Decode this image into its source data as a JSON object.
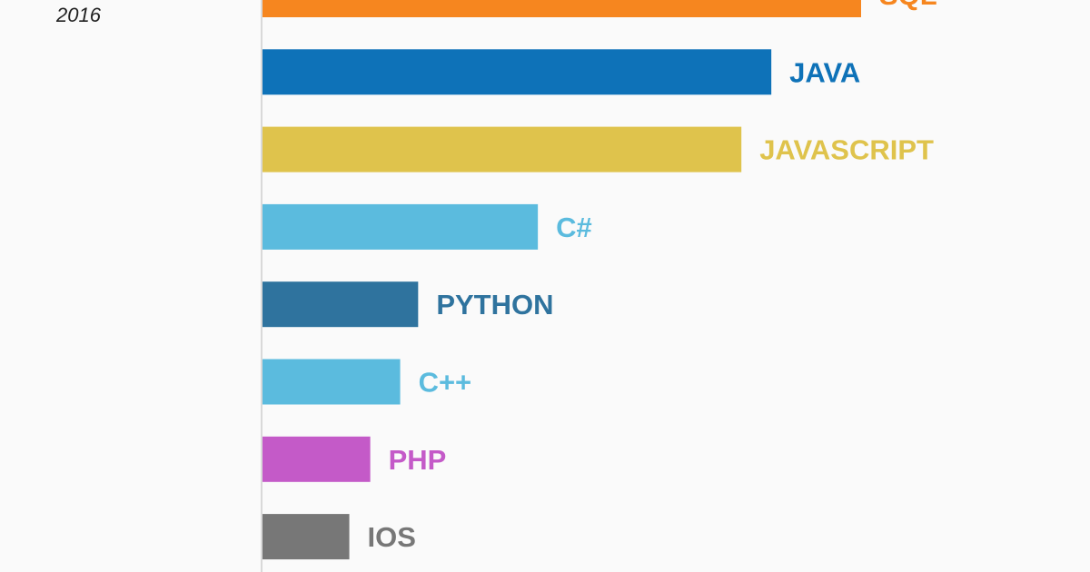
{
  "header": {
    "year": "2016"
  },
  "chart_data": {
    "type": "bar",
    "orientation": "horizontal",
    "categories": [
      "SQL",
      "JAVA",
      "JAVASCRIPT",
      "C#",
      "PYTHON",
      "C++",
      "PHP",
      "IOS"
    ],
    "values": [
      100,
      85,
      80,
      46,
      26,
      23,
      18,
      14.5
    ],
    "colors": [
      "#f6861f",
      "#0e72b8",
      "#dfc34c",
      "#5bbbde",
      "#2f739e",
      "#5bbbde",
      "#c45ac8",
      "#777777"
    ],
    "xlim": [
      0,
      100
    ],
    "grid": false,
    "legend": "none"
  }
}
